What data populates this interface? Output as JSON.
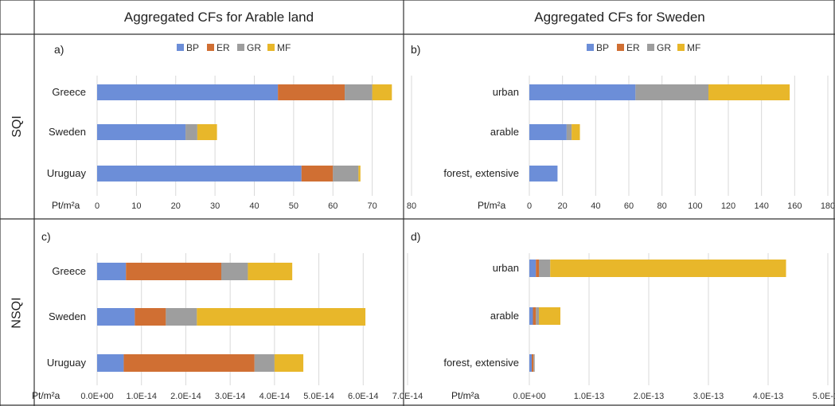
{
  "headers": {
    "left": "Aggregated CFs for Arable land",
    "right": "Aggregated CFs for Sweden"
  },
  "row_labels": {
    "top": "SQI",
    "bottom": "NSQI"
  },
  "colors": {
    "BP": "#6c8ed8",
    "ER": "#d06f33",
    "GR": "#9e9e9e",
    "MF": "#e8b72a",
    "grid": "#d9d9d9",
    "border": "#333333"
  },
  "chart_data": [
    {
      "id": "a",
      "label": "a)",
      "type": "bar",
      "orientation": "horizontal",
      "stacked": true,
      "unit_label": "Pt/m²a",
      "legend": [
        "BP",
        "ER",
        "GR",
        "MF"
      ],
      "legend_position": "top",
      "categories": [
        "Greece",
        "Sweden",
        "Uruguay"
      ],
      "series": [
        {
          "name": "BP",
          "values": [
            46,
            22.5,
            52
          ]
        },
        {
          "name": "ER",
          "values": [
            17,
            0,
            8
          ]
        },
        {
          "name": "GR",
          "values": [
            7,
            3,
            6.5
          ]
        },
        {
          "name": "MF",
          "values": [
            5,
            5,
            0.5
          ]
        }
      ],
      "xlim": [
        0,
        80
      ],
      "ticks": [
        0,
        10,
        20,
        30,
        40,
        50,
        60,
        70,
        80
      ],
      "tick_labels": [
        "0",
        "10",
        "20",
        "30",
        "40",
        "50",
        "60",
        "70",
        "80"
      ],
      "grid": true
    },
    {
      "id": "b",
      "label": "b)",
      "type": "bar",
      "orientation": "horizontal",
      "stacked": true,
      "unit_label": "Pt/m²a",
      "legend": [
        "BP",
        "ER",
        "GR",
        "MF"
      ],
      "legend_position": "top",
      "categories": [
        "urban",
        "arable",
        "forest, extensive"
      ],
      "series": [
        {
          "name": "BP",
          "values": [
            64,
            22.5,
            17
          ]
        },
        {
          "name": "ER",
          "values": [
            0,
            0,
            0
          ]
        },
        {
          "name": "GR",
          "values": [
            44,
            3,
            0
          ]
        },
        {
          "name": "MF",
          "values": [
            49,
            5,
            0
          ]
        }
      ],
      "xlim": [
        0,
        180
      ],
      "ticks": [
        0,
        20,
        40,
        60,
        80,
        100,
        120,
        140,
        160,
        180
      ],
      "tick_labels": [
        "0",
        "20",
        "40",
        "60",
        "80",
        "100",
        "120",
        "140",
        "160",
        "180"
      ],
      "grid": true
    },
    {
      "id": "c",
      "label": "c)",
      "type": "bar",
      "orientation": "horizontal",
      "stacked": true,
      "unit_label": "Pt/m²a",
      "categories": [
        "Greece",
        "Sweden",
        "Uruguay"
      ],
      "series": [
        {
          "name": "BP",
          "values": [
            6.5e-15,
            8.5e-15,
            6e-15
          ]
        },
        {
          "name": "ER",
          "values": [
            2.15e-14,
            7e-15,
            2.95e-14
          ]
        },
        {
          "name": "GR",
          "values": [
            6e-15,
            7e-15,
            4.5e-15
          ]
        },
        {
          "name": "MF",
          "values": [
            1e-14,
            3.8e-14,
            6.5e-15
          ]
        }
      ],
      "xlim": [
        0,
        7e-14
      ],
      "ticks": [
        0,
        1e-14,
        2e-14,
        3e-14,
        4e-14,
        5e-14,
        6e-14,
        7e-14
      ],
      "tick_labels": [
        "0.0E+00",
        "1.0E-14",
        "2.0E-14",
        "3.0E-14",
        "4.0E-14",
        "5.0E-14",
        "6.0E-14",
        "7.0E-14"
      ],
      "grid": true
    },
    {
      "id": "d",
      "label": "d)",
      "type": "bar",
      "orientation": "horizontal",
      "stacked": true,
      "unit_label": "Pt/m²a",
      "categories": [
        "urban",
        "arable",
        "forest, extensive"
      ],
      "series": [
        {
          "name": "BP",
          "values": [
            1.1e-14,
            6e-15,
            4e-15
          ]
        },
        {
          "name": "ER",
          "values": [
            5e-15,
            5e-15,
            3e-15
          ]
        },
        {
          "name": "GR",
          "values": [
            1.9e-14,
            5e-15,
            2e-15
          ]
        },
        {
          "name": "MF",
          "values": [
            3.95e-13,
            3.6e-14,
            0
          ]
        }
      ],
      "xlim": [
        0,
        5e-13
      ],
      "ticks": [
        0,
        1e-13,
        2e-13,
        3e-13,
        4e-13,
        5e-13
      ],
      "tick_labels": [
        "0.0E+00",
        "1.0E-13",
        "2.0E-13",
        "3.0E-13",
        "4.0E-13",
        "5.0E-13"
      ],
      "grid": true
    }
  ]
}
